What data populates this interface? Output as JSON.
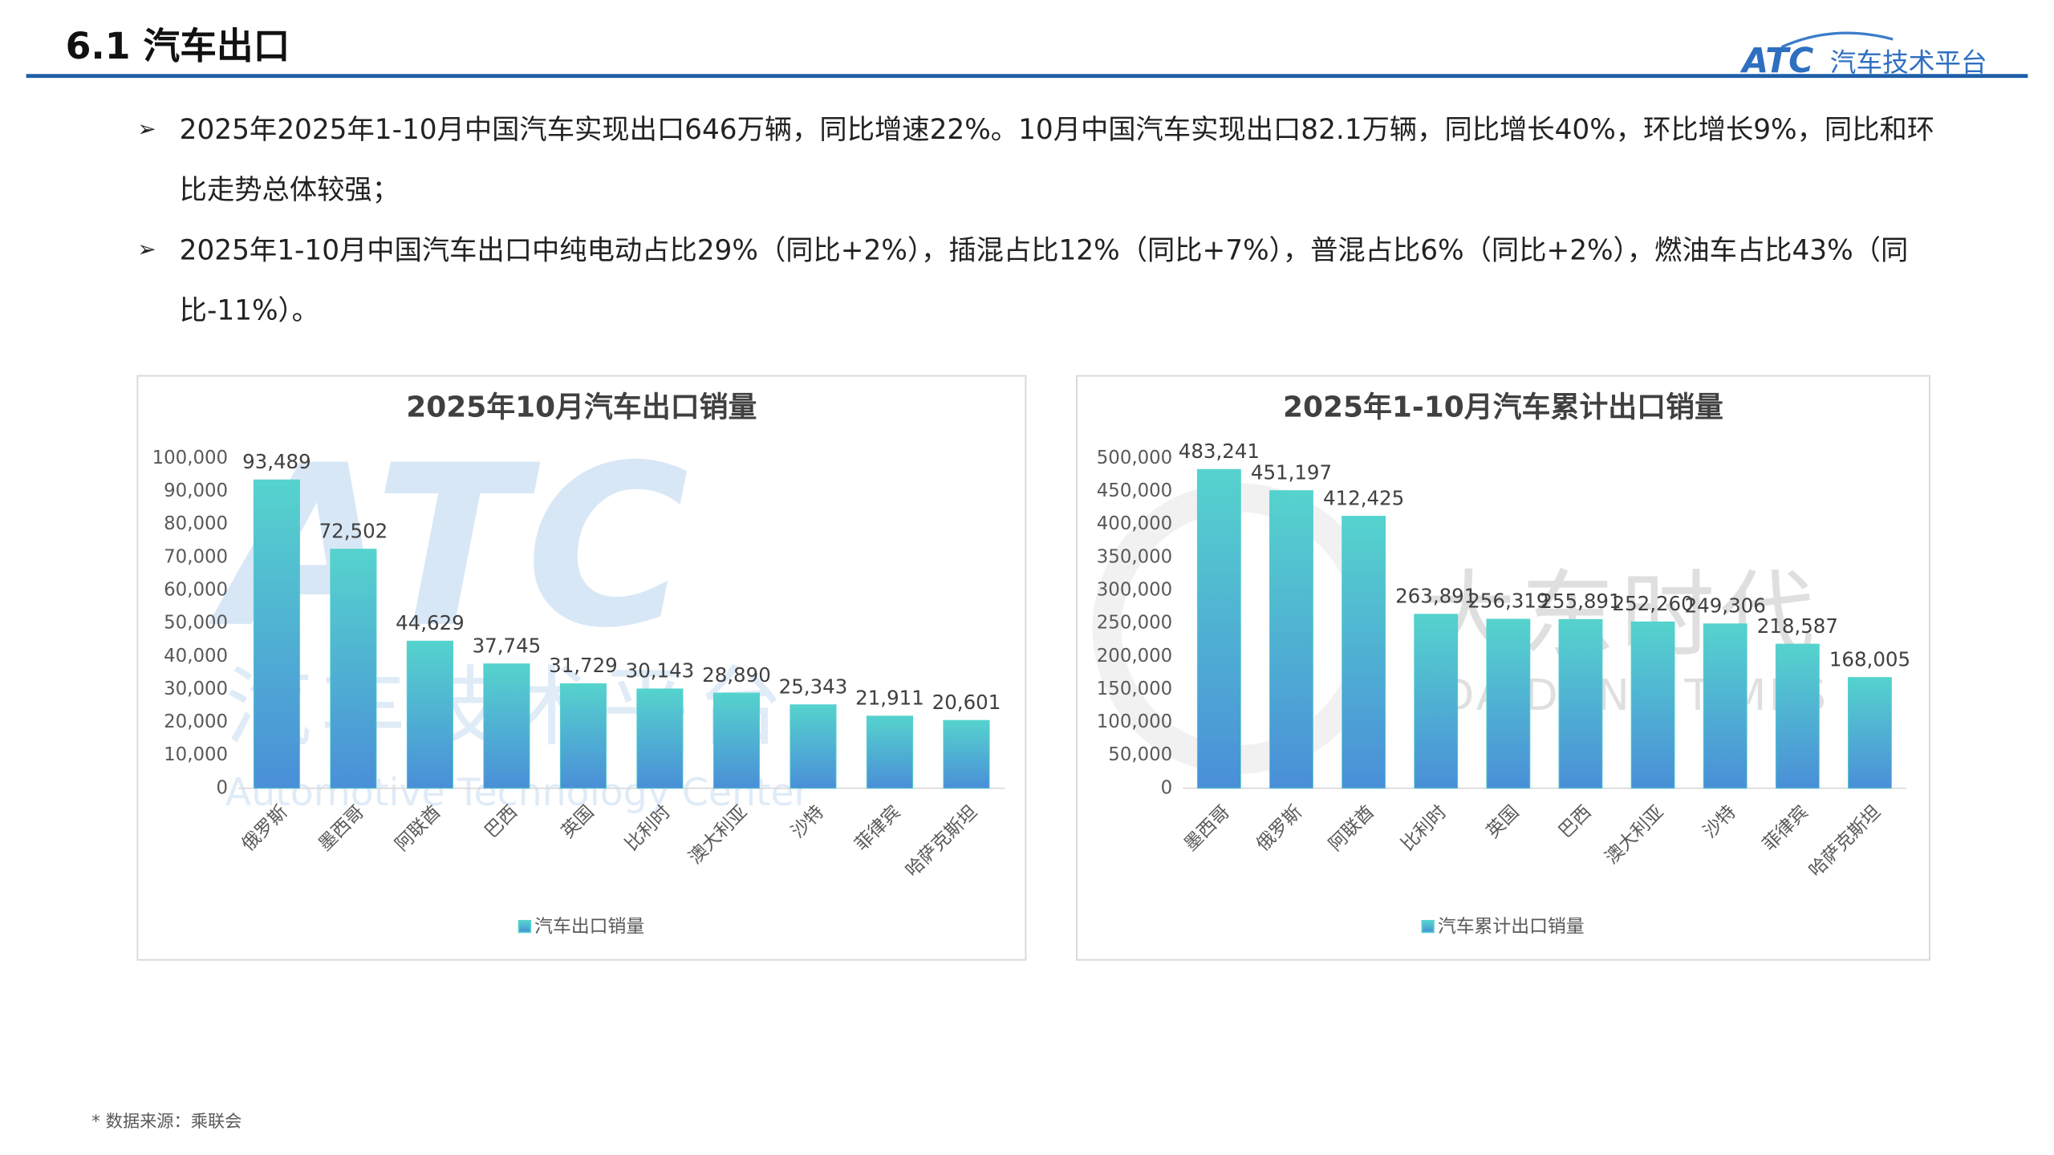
{
  "header": {
    "title": "6.1 汽车出口",
    "logo": "ATC",
    "logo_text": "汽车技术平台"
  },
  "bullets": [
    "2025年2025年1-10月中国汽车实现出口646万辆，同比增速22%。10月中国汽车实现出口82.1万辆，同比增长40%，环比增长9%，同比和环比走势总体较强；",
    "2025年1-10月中国汽车出口中纯电动占比29%（同比+2%），插混占比12%（同比+7%），普混占比6%（同比+2%），燃油车占比43%（同比-11%）。"
  ],
  "chart_data": [
    {
      "type": "bar",
      "title": "2025年10月汽车出口销量",
      "categories": [
        "俄罗斯",
        "墨西哥",
        "阿联酋",
        "巴西",
        "英国",
        "比利时",
        "澳大利亚",
        "沙特",
        "菲律宾",
        "哈萨克斯坦"
      ],
      "series": [
        {
          "name": "汽车出口销量",
          "color": "#55d3cd",
          "values": [
            93489,
            72502,
            44629,
            37745,
            31729,
            30143,
            28890,
            25343,
            21911,
            20601
          ],
          "value_labels": [
            "93,489",
            "72,502",
            "44,629",
            "37,745",
            "31,729",
            "30,143",
            "28,890",
            "25,343",
            "21,911",
            "20,601"
          ]
        }
      ],
      "ylim": [
        0,
        100000
      ],
      "yticks": [
        0,
        {
          "value": 10000,
          "label": "10,000"
        },
        {
          "value": 20000,
          "label": "20,000"
        },
        {
          "value": 30000,
          "label": "30,000"
        },
        {
          "value": 40000,
          "label": "40,000"
        },
        {
          "value": 50000,
          "label": "50,000"
        },
        {
          "value": 60000,
          "label": "60,000"
        },
        {
          "value": 70000,
          "label": "70,000"
        },
        {
          "value": 80000,
          "label": "80,000"
        },
        {
          "value": 90000,
          "label": "90,000"
        },
        {
          "value": 100000,
          "label": "100,000"
        }
      ],
      "grid": false,
      "legend": "bottom",
      "watermark": [
        "ATC",
        "汽车技术平台",
        "Automotive Technology Center"
      ]
    },
    {
      "type": "bar",
      "title": "2025年1-10月汽车累计出口销量",
      "categories": [
        "墨西哥",
        "俄罗斯",
        "阿联酋",
        "比利时",
        "英国",
        "巴西",
        "澳大利亚",
        "沙特",
        "菲律宾",
        "哈萨克斯坦"
      ],
      "series": [
        {
          "name": "汽车累计出口销量",
          "color": "#55d3cd",
          "values": [
            483241,
            451197,
            412425,
            263891,
            256319,
            255891,
            252260,
            249306,
            218587,
            168005
          ],
          "value_labels": [
            "483,241",
            "451,197",
            "412,425",
            "263,891",
            "256,319",
            "255,891",
            "252,260",
            "249,306",
            "218,587",
            "168,005"
          ]
        }
      ],
      "ylim": [
        0,
        500000
      ],
      "yticks": [
        0,
        {
          "value": 50000,
          "label": "50,000"
        },
        {
          "value": 100000,
          "label": "100,000"
        },
        {
          "value": 150000,
          "label": "150,000"
        },
        {
          "value": 200000,
          "label": "200,000"
        },
        {
          "value": 250000,
          "label": "250,000"
        },
        {
          "value": 300000,
          "label": "300,000"
        },
        {
          "value": 350000,
          "label": "350,000"
        },
        {
          "value": 400000,
          "label": "400,000"
        },
        {
          "value": 450000,
          "label": "450,000"
        },
        {
          "value": 500000,
          "label": "500,000"
        }
      ],
      "grid": false,
      "legend": "bottom",
      "watermark": [
        "大东时代",
        "DA DONG TIMES"
      ]
    }
  ],
  "source": "* 数据来源：乘联会"
}
